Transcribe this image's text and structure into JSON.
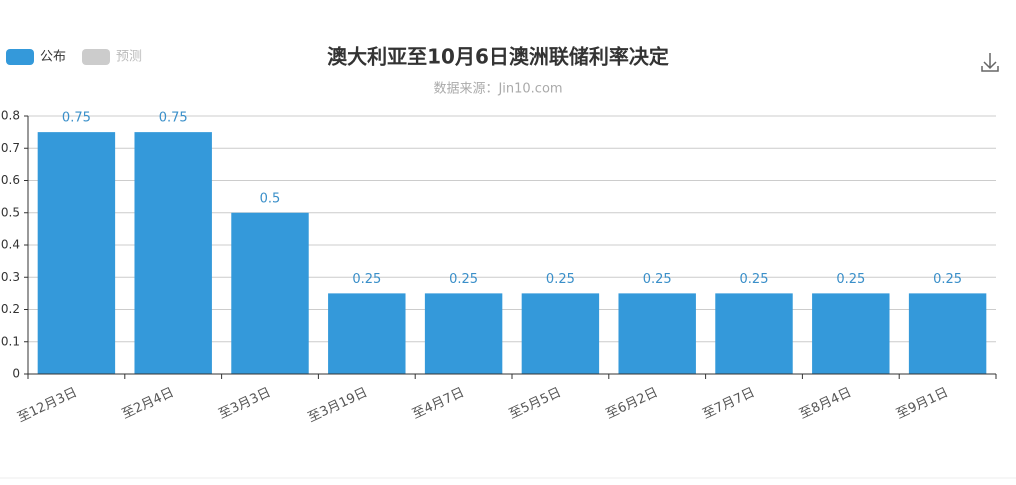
{
  "chart_data": {
    "type": "bar",
    "title": "澳大利亚至10月6日澳洲联储利率决定",
    "subtitle": "数据来源：Jin10.com",
    "legend": [
      {
        "name": "公布",
        "color": "#3499da"
      },
      {
        "name": "预测",
        "color": "#cccccc"
      }
    ],
    "categories": [
      "至12月3日",
      "至2月4日",
      "至3月3日",
      "至3月19日",
      "至4月7日",
      "至5月5日",
      "至6月2日",
      "至7月7日",
      "至8月4日",
      "至9月1日"
    ],
    "values": [
      0.75,
      0.75,
      0.5,
      0.25,
      0.25,
      0.25,
      0.25,
      0.25,
      0.25,
      0.25
    ],
    "color": "#3499da",
    "ylim": [
      0,
      0.8
    ],
    "yticks": [
      0,
      0.1,
      0.2,
      0.3,
      0.4,
      0.5,
      0.6,
      0.7,
      0.8
    ],
    "grid": true
  }
}
